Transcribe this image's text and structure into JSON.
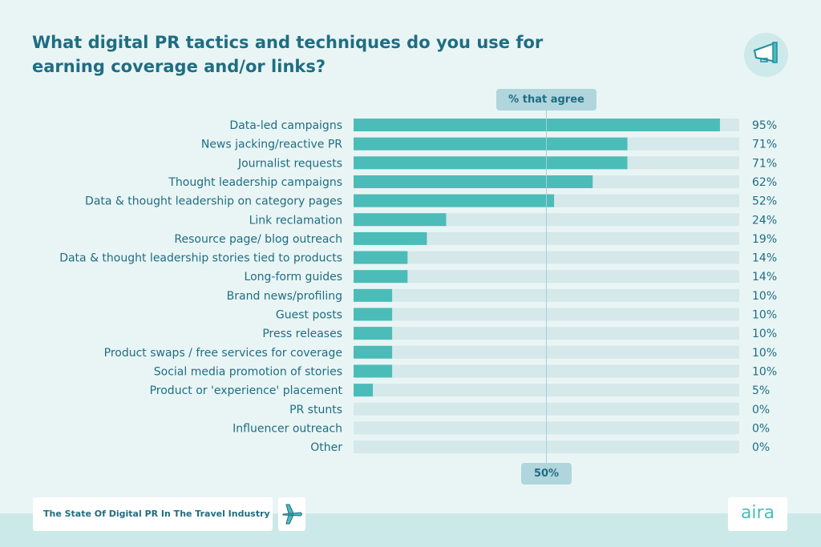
{
  "chart_data": {
    "type": "bar",
    "orientation": "horizontal",
    "title": "What digital PR tactics and techniques do you use for earning coverage and/or links?",
    "axis_label": "% that agree",
    "reference_line": {
      "value": 50,
      "label": "50%"
    },
    "xlim": [
      0,
      100
    ],
    "categories": [
      "Data-led campaigns",
      "News jacking/reactive PR",
      "Journalist requests",
      "Thought leadership campaigns",
      "Data & thought leadership on category pages",
      "Link reclamation",
      "Resource page/ blog outreach",
      "Data & thought leadership stories tied to products",
      "Long-form guides",
      "Brand news/profiling",
      "Guest posts",
      "Press releases",
      "Product swaps / free services for coverage",
      "Social media promotion of stories",
      "Product or 'experience' placement",
      "PR stunts",
      "Influencer outreach",
      "Other"
    ],
    "values": [
      95,
      71,
      71,
      62,
      52,
      24,
      19,
      14,
      14,
      10,
      10,
      10,
      10,
      10,
      5,
      0,
      0,
      0
    ],
    "value_labels": [
      "95%",
      "71%",
      "71%",
      "62%",
      "52%",
      "24%",
      "19%",
      "14%",
      "14%",
      "10%",
      "10%",
      "10%",
      "10%",
      "10%",
      "5%",
      "0%",
      "0%",
      "0%"
    ],
    "colors": {
      "bar": "#4cbcb8",
      "track": "#d5e8ea",
      "reference": "#a9cfd6"
    }
  },
  "footer": {
    "report_title": "The State Of Digital PR In The Travel Industry",
    "logo": "aira",
    "icons": [
      "megaphone-icon",
      "airplane-icon"
    ]
  }
}
